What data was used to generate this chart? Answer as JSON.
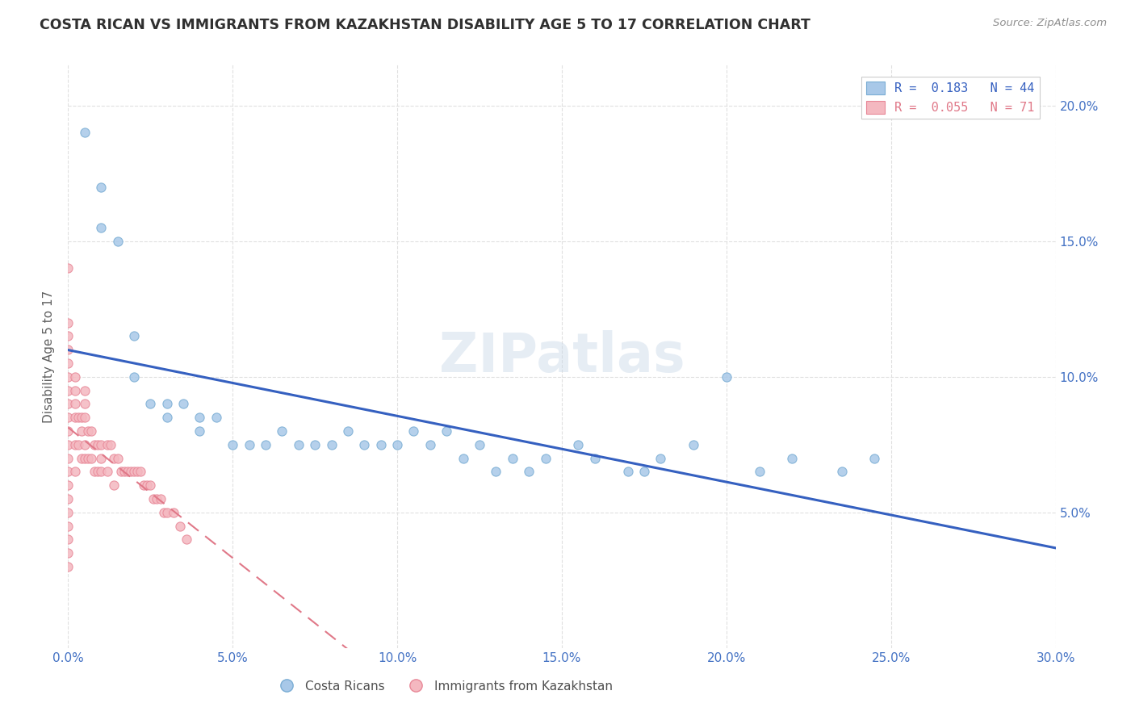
{
  "title": "COSTA RICAN VS IMMIGRANTS FROM KAZAKHSTAN DISABILITY AGE 5 TO 17 CORRELATION CHART",
  "source_text": "Source: ZipAtlas.com",
  "ylabel": "Disability Age 5 to 17",
  "xlabel": "",
  "xlim": [
    0.0,
    0.3
  ],
  "ylim": [
    0.0,
    0.215
  ],
  "xtick_values": [
    0.0,
    0.05,
    0.1,
    0.15,
    0.2,
    0.25,
    0.3
  ],
  "ytick_values": [
    0.05,
    0.1,
    0.15,
    0.2
  ],
  "legend_R1": "R =  0.183",
  "legend_N1": "N = 44",
  "legend_R2": "R =  0.055",
  "legend_N2": "N = 71",
  "series1_color": "#a8c8e8",
  "series1_edge": "#7aadd4",
  "series2_color": "#f4b8c0",
  "series2_edge": "#e88898",
  "series1_name": "Costa Ricans",
  "series2_name": "Immigrants from Kazakhstan",
  "trendline1_color": "#3560c0",
  "trendline2_color": "#e07888",
  "watermark": "ZIPatlas",
  "background_color": "#ffffff",
  "grid_color": "#e0e0e0",
  "title_color": "#303030",
  "source_color": "#909090",
  "axis_label_color": "#4472c4",
  "ylabel_color": "#606060",
  "cr_x": [
    0.005,
    0.01,
    0.01,
    0.015,
    0.02,
    0.02,
    0.025,
    0.03,
    0.03,
    0.035,
    0.04,
    0.04,
    0.045,
    0.05,
    0.055,
    0.06,
    0.065,
    0.07,
    0.075,
    0.08,
    0.085,
    0.09,
    0.095,
    0.1,
    0.105,
    0.11,
    0.115,
    0.12,
    0.125,
    0.13,
    0.135,
    0.14,
    0.145,
    0.155,
    0.16,
    0.17,
    0.175,
    0.18,
    0.19,
    0.2,
    0.21,
    0.22,
    0.235,
    0.245
  ],
  "cr_y": [
    0.19,
    0.17,
    0.155,
    0.15,
    0.115,
    0.1,
    0.09,
    0.09,
    0.085,
    0.09,
    0.085,
    0.08,
    0.085,
    0.075,
    0.075,
    0.075,
    0.08,
    0.075,
    0.075,
    0.075,
    0.08,
    0.075,
    0.075,
    0.075,
    0.08,
    0.075,
    0.08,
    0.07,
    0.075,
    0.065,
    0.07,
    0.065,
    0.07,
    0.075,
    0.07,
    0.065,
    0.065,
    0.07,
    0.075,
    0.1,
    0.065,
    0.07,
    0.065,
    0.07
  ],
  "kaz_x": [
    0.0,
    0.0,
    0.0,
    0.0,
    0.0,
    0.0,
    0.0,
    0.0,
    0.0,
    0.0,
    0.0,
    0.0,
    0.0,
    0.0,
    0.0,
    0.0,
    0.0,
    0.0,
    0.0,
    0.0,
    0.002,
    0.002,
    0.002,
    0.002,
    0.002,
    0.002,
    0.003,
    0.003,
    0.004,
    0.004,
    0.004,
    0.005,
    0.005,
    0.005,
    0.005,
    0.005,
    0.006,
    0.006,
    0.007,
    0.007,
    0.008,
    0.008,
    0.009,
    0.009,
    0.01,
    0.01,
    0.01,
    0.012,
    0.012,
    0.013,
    0.014,
    0.014,
    0.015,
    0.016,
    0.017,
    0.018,
    0.019,
    0.02,
    0.021,
    0.022,
    0.023,
    0.024,
    0.025,
    0.026,
    0.027,
    0.028,
    0.029,
    0.03,
    0.032,
    0.034,
    0.036
  ],
  "kaz_y": [
    0.14,
    0.12,
    0.115,
    0.11,
    0.105,
    0.1,
    0.095,
    0.09,
    0.085,
    0.08,
    0.075,
    0.07,
    0.065,
    0.06,
    0.055,
    0.05,
    0.045,
    0.04,
    0.035,
    0.03,
    0.1,
    0.095,
    0.09,
    0.085,
    0.075,
    0.065,
    0.085,
    0.075,
    0.085,
    0.08,
    0.07,
    0.095,
    0.09,
    0.085,
    0.075,
    0.07,
    0.08,
    0.07,
    0.08,
    0.07,
    0.075,
    0.065,
    0.075,
    0.065,
    0.075,
    0.07,
    0.065,
    0.075,
    0.065,
    0.075,
    0.07,
    0.06,
    0.07,
    0.065,
    0.065,
    0.065,
    0.065,
    0.065,
    0.065,
    0.065,
    0.06,
    0.06,
    0.06,
    0.055,
    0.055,
    0.055,
    0.05,
    0.05,
    0.05,
    0.045,
    0.04
  ]
}
